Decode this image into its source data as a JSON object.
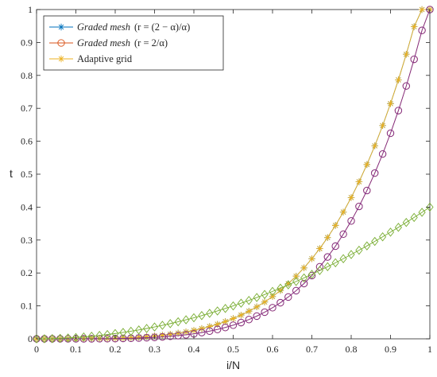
{
  "chart_data": {
    "type": "line",
    "xlabel": "i/N",
    "ylabel": "t",
    "xlim": [
      0,
      1
    ],
    "ylim": [
      0,
      1
    ],
    "xticks": [
      "0",
      "0.1",
      "0.2",
      "0.3",
      "0.4",
      "0.5",
      "0.6",
      "0.7",
      "0.8",
      "0.9",
      "1"
    ],
    "yticks": [
      "0",
      "0.1",
      "0.2",
      "0.3",
      "0.4",
      "0.5",
      "0.6",
      "0.7",
      "0.8",
      "0.9",
      "1"
    ],
    "grid": false,
    "legend_position": "top-left",
    "x": [
      0,
      0.02,
      0.04,
      0.06,
      0.08,
      0.1,
      0.12,
      0.14,
      0.16,
      0.18,
      0.2,
      0.22,
      0.24,
      0.26,
      0.28,
      0.3,
      0.32,
      0.34,
      0.36,
      0.38,
      0.4,
      0.42,
      0.44,
      0.46,
      0.48,
      0.5,
      0.52,
      0.54,
      0.56,
      0.58,
      0.6,
      0.62,
      0.64,
      0.66,
      0.68,
      0.7,
      0.72,
      0.74,
      0.76,
      0.78,
      0.8,
      0.82,
      0.84,
      0.86,
      0.88,
      0.9,
      0.92,
      0.94,
      0.96,
      0.98,
      1
    ],
    "series": [
      {
        "name_prefix": "Graded mesh",
        "name_suffix": "(r = (2 − α)/α)",
        "color": "#0072bd",
        "marker": "asterisk",
        "values": [
          0,
          0,
          0,
          0,
          0.0001,
          0.0002,
          0.0004,
          0.0006,
          0.0009,
          0.0014,
          0.002,
          0.0028,
          0.0038,
          0.0051,
          0.0067,
          0.0087,
          0.011,
          0.0139,
          0.0172,
          0.0212,
          0.0258,
          0.0311,
          0.0373,
          0.0443,
          0.0524,
          0.0616,
          0.072,
          0.0838,
          0.097,
          0.1118,
          0.1284,
          0.1469,
          0.1675,
          0.1903,
          0.2155,
          0.2433,
          0.274,
          0.3076,
          0.3445,
          0.3849,
          0.429,
          0.477,
          0.5293,
          0.5861,
          0.6477,
          0.7144,
          0.7864,
          0.8642,
          0.948,
          1.0382,
          1
        ]
      },
      {
        "name_prefix": "Graded mesh",
        "name_suffix": "(r = 2/α)",
        "color": "#d95319",
        "marker": "circle",
        "values": [
          0,
          0,
          0,
          0,
          0,
          0,
          0.0001,
          0.0002,
          0.0003,
          0.0005,
          0.0008,
          0.0012,
          0.0017,
          0.0024,
          0.0033,
          0.0044,
          0.0058,
          0.0076,
          0.0097,
          0.0122,
          0.0153,
          0.019,
          0.0234,
          0.0285,
          0.0345,
          0.0414,
          0.0494,
          0.0586,
          0.069,
          0.081,
          0.0945,
          0.1097,
          0.127,
          0.1463,
          0.1679,
          0.192,
          0.2188,
          0.2486,
          0.2815,
          0.3179,
          0.358,
          0.4021,
          0.4504,
          0.5034,
          0.5613,
          0.6244,
          0.6931,
          0.7678,
          0.8489,
          0.9367,
          1
        ]
      },
      {
        "name": "Adaptive grid",
        "color": "#edb120",
        "marker": "asterisk",
        "values": [
          0,
          0,
          0,
          0,
          0.0001,
          0.0002,
          0.0004,
          0.0006,
          0.0009,
          0.0014,
          0.002,
          0.0028,
          0.0038,
          0.0051,
          0.0067,
          0.0087,
          0.011,
          0.0139,
          0.0172,
          0.0212,
          0.0258,
          0.0311,
          0.0373,
          0.0443,
          0.0524,
          0.0616,
          0.072,
          0.0838,
          0.097,
          0.1118,
          0.1284,
          0.1469,
          0.1675,
          0.1903,
          0.2155,
          0.2433,
          0.274,
          0.3076,
          0.3445,
          0.3849,
          0.429,
          0.477,
          0.5293,
          0.5861,
          0.6477,
          0.7144,
          0.7864,
          0.8642,
          0.948,
          1.0382,
          1
        ]
      },
      {
        "color": "#7e2f8e",
        "marker": "circle",
        "values": [
          0,
          0,
          0,
          0,
          0,
          0,
          0.0001,
          0.0002,
          0.0003,
          0.0005,
          0.0008,
          0.0012,
          0.0017,
          0.0024,
          0.0033,
          0.0044,
          0.0058,
          0.0076,
          0.0097,
          0.0122,
          0.0153,
          0.019,
          0.0234,
          0.0285,
          0.0345,
          0.0414,
          0.0494,
          0.0586,
          0.069,
          0.081,
          0.0945,
          0.1097,
          0.127,
          0.1463,
          0.1679,
          0.192,
          0.2188,
          0.2486,
          0.2815,
          0.3179,
          0.358,
          0.4021,
          0.4504,
          0.5034,
          0.5613,
          0.6244,
          0.6931,
          0.7678,
          0.8489,
          0.9367,
          1
        ]
      },
      {
        "color": "#77ac30",
        "marker": "diamond",
        "values": [
          0,
          0.0002,
          0.0006,
          0.0014,
          0.0026,
          0.004,
          0.0058,
          0.0078,
          0.0102,
          0.013,
          0.016,
          0.0194,
          0.023,
          0.027,
          0.0314,
          0.036,
          0.041,
          0.0462,
          0.0518,
          0.0578,
          0.064,
          0.0706,
          0.0774,
          0.0846,
          0.0922,
          0.1,
          0.1082,
          0.1166,
          0.1254,
          0.1346,
          0.144,
          0.1538,
          0.1638,
          0.1742,
          0.185,
          0.196,
          0.2074,
          0.219,
          0.231,
          0.2434,
          0.256,
          0.269,
          0.2822,
          0.2958,
          0.3098,
          0.324,
          0.3386,
          0.3534,
          0.3686,
          0.3842,
          0.4
        ]
      }
    ]
  }
}
